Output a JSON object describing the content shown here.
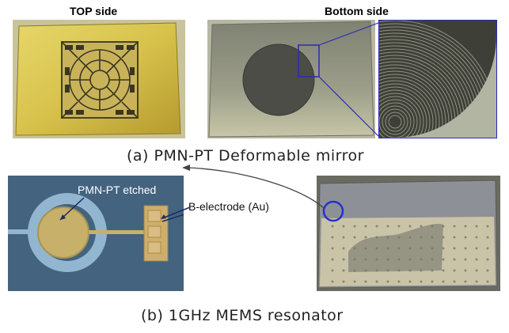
{
  "top_section": {
    "top_side_label": "TOP side",
    "bottom_side_label": "Bottom side",
    "caption": "(a) PMN-PT Deformable mirror"
  },
  "bottom_section": {
    "annotation_etched": "PMN-PT etched",
    "annotation_electrode": "B-electrode (Au)",
    "caption": "(b) 1GHz MEMS resonator"
  },
  "colors": {
    "yellow_film": "#d8c14a",
    "gray_wafer": "#9a9b86",
    "dark_circle": "#4a4d46",
    "zoom_box": "#2a2ab8",
    "chip_blue": "#3f5f7a",
    "ring_blue": "#8fb2cc",
    "electrode_gold": "#c9a86a"
  }
}
